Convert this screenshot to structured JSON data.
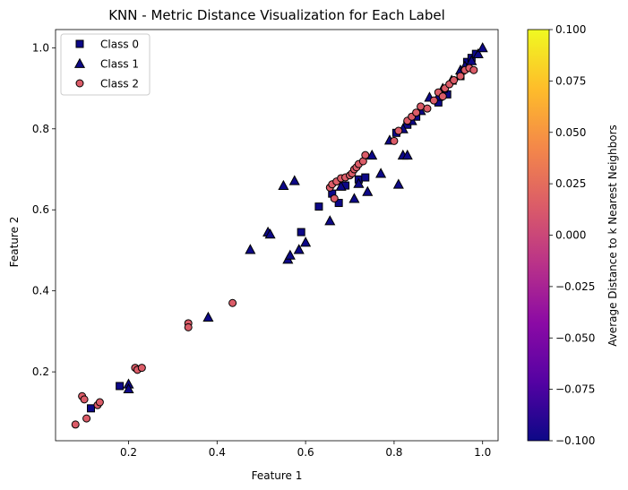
{
  "chart_data": {
    "type": "scatter",
    "title": "KNN - Metric Distance Visualization for Each Label",
    "xlabel": "Feature 1",
    "ylabel": "Feature 2",
    "xlim": [
      0.035,
      1.035
    ],
    "ylim": [
      0.03,
      1.045
    ],
    "xticks": [
      "0.2",
      "0.4",
      "0.6",
      "0.8",
      "1.0"
    ],
    "xtick_values": [
      0.2,
      0.4,
      0.6,
      0.8,
      1.0
    ],
    "yticks": [
      "0.2",
      "0.4",
      "0.6",
      "0.8",
      "1.0"
    ],
    "ytick_values": [
      0.2,
      0.4,
      0.6,
      0.8,
      1.0
    ],
    "grid": false,
    "legend_position": "upper-left",
    "colorbar": {
      "label": "Average Distance to k Nearest Neighbors",
      "range": [
        -0.1,
        0.1
      ],
      "ticks": [
        "0.100",
        "0.075",
        "0.050",
        "0.025",
        "0.000",
        "−0.025",
        "−0.050",
        "−0.075",
        "−0.100"
      ],
      "tick_values": [
        0.1,
        0.075,
        0.05,
        0.025,
        0.0,
        -0.025,
        -0.05,
        -0.075,
        -0.1
      ],
      "colormap": "plasma",
      "colormap_stops": [
        "#0d0887",
        "#5402a3",
        "#8b0aa5",
        "#b93289",
        "#db5c68",
        "#f48849",
        "#febd2a",
        "#f0f921"
      ]
    },
    "series": [
      {
        "name": "Class 0",
        "marker": "square",
        "color": "#0d0887",
        "points": [
          [
            0.115,
            0.11
          ],
          [
            0.18,
            0.165
          ],
          [
            0.59,
            0.545
          ],
          [
            0.63,
            0.608
          ],
          [
            0.66,
            0.64
          ],
          [
            0.675,
            0.617
          ],
          [
            0.69,
            0.66
          ],
          [
            0.72,
            0.675
          ],
          [
            0.735,
            0.68
          ],
          [
            0.805,
            0.79
          ],
          [
            0.83,
            0.81
          ],
          [
            0.85,
            0.83
          ],
          [
            0.9,
            0.865
          ],
          [
            0.92,
            0.885
          ],
          [
            0.95,
            0.93
          ],
          [
            0.965,
            0.965
          ],
          [
            0.975,
            0.975
          ],
          [
            0.985,
            0.985
          ]
        ]
      },
      {
        "name": "Class 1",
        "marker": "triangle",
        "color": "#0d0887",
        "points": [
          [
            0.2,
            0.17
          ],
          [
            0.2,
            0.158
          ],
          [
            0.38,
            0.335
          ],
          [
            0.475,
            0.502
          ],
          [
            0.515,
            0.545
          ],
          [
            0.52,
            0.54
          ],
          [
            0.55,
            0.66
          ],
          [
            0.56,
            0.478
          ],
          [
            0.565,
            0.488
          ],
          [
            0.575,
            0.672
          ],
          [
            0.585,
            0.502
          ],
          [
            0.6,
            0.52
          ],
          [
            0.655,
            0.573
          ],
          [
            0.68,
            0.658
          ],
          [
            0.72,
            0.665
          ],
          [
            0.71,
            0.628
          ],
          [
            0.74,
            0.645
          ],
          [
            0.75,
            0.735
          ],
          [
            0.77,
            0.69
          ],
          [
            0.79,
            0.772
          ],
          [
            0.81,
            0.663
          ],
          [
            0.82,
            0.735
          ],
          [
            0.83,
            0.735
          ],
          [
            0.82,
            0.8
          ],
          [
            0.84,
            0.82
          ],
          [
            0.86,
            0.845
          ],
          [
            0.88,
            0.878
          ],
          [
            0.9,
            0.88
          ],
          [
            0.91,
            0.9
          ],
          [
            0.93,
            0.92
          ],
          [
            0.95,
            0.945
          ],
          [
            0.96,
            0.955
          ],
          [
            0.975,
            0.968
          ],
          [
            0.99,
            0.985
          ],
          [
            1.0,
            1.0
          ]
        ]
      },
      {
        "name": "Class 2",
        "marker": "circle",
        "color": "#db5c68",
        "points": [
          [
            0.08,
            0.07
          ],
          [
            0.095,
            0.14
          ],
          [
            0.1,
            0.132
          ],
          [
            0.105,
            0.085
          ],
          [
            0.13,
            0.118
          ],
          [
            0.135,
            0.125
          ],
          [
            0.215,
            0.21
          ],
          [
            0.22,
            0.205
          ],
          [
            0.23,
            0.21
          ],
          [
            0.335,
            0.32
          ],
          [
            0.335,
            0.31
          ],
          [
            0.435,
            0.37
          ],
          [
            0.655,
            0.655
          ],
          [
            0.66,
            0.663
          ],
          [
            0.665,
            0.628
          ],
          [
            0.67,
            0.67
          ],
          [
            0.68,
            0.678
          ],
          [
            0.69,
            0.68
          ],
          [
            0.7,
            0.685
          ],
          [
            0.705,
            0.69
          ],
          [
            0.71,
            0.7
          ],
          [
            0.715,
            0.705
          ],
          [
            0.72,
            0.713
          ],
          [
            0.73,
            0.72
          ],
          [
            0.735,
            0.735
          ],
          [
            0.8,
            0.77
          ],
          [
            0.81,
            0.795
          ],
          [
            0.83,
            0.82
          ],
          [
            0.84,
            0.83
          ],
          [
            0.85,
            0.84
          ],
          [
            0.86,
            0.855
          ],
          [
            0.875,
            0.85
          ],
          [
            0.89,
            0.87
          ],
          [
            0.9,
            0.89
          ],
          [
            0.91,
            0.88
          ],
          [
            0.915,
            0.9
          ],
          [
            0.925,
            0.91
          ],
          [
            0.935,
            0.92
          ],
          [
            0.95,
            0.93
          ],
          [
            0.96,
            0.945
          ],
          [
            0.97,
            0.95
          ],
          [
            0.98,
            0.945
          ]
        ]
      }
    ]
  }
}
